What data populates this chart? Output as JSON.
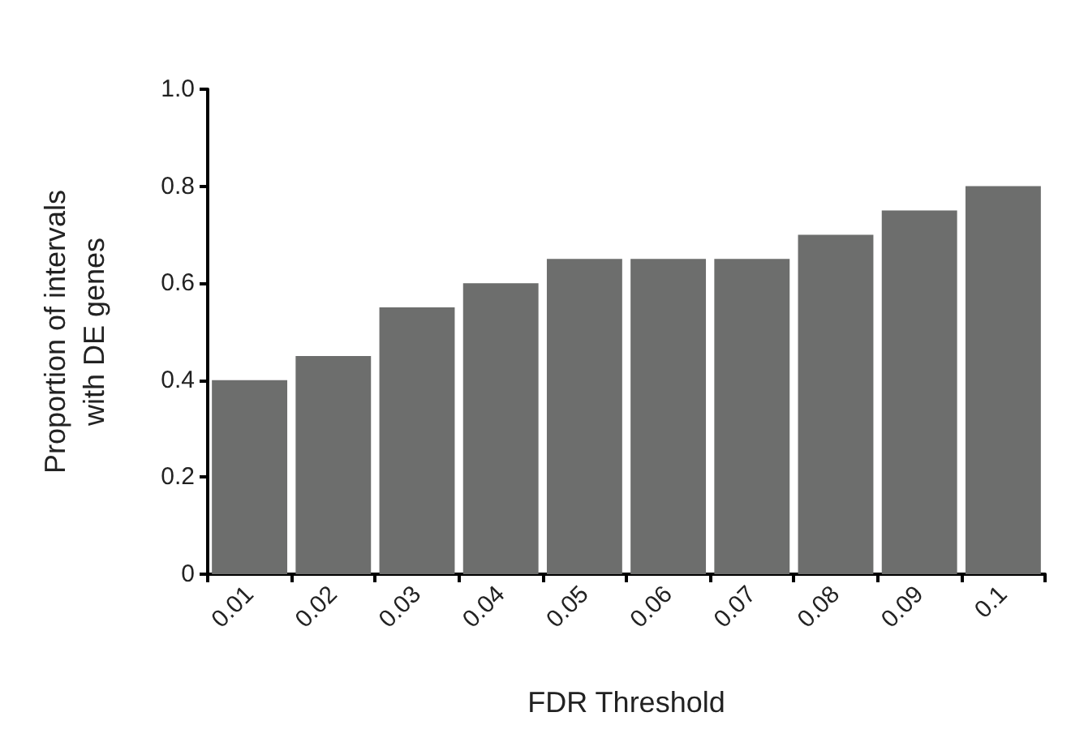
{
  "chart_data": {
    "type": "bar",
    "xlabel": "FDR Threshold",
    "ylabel": "Proportion of intervals\nwith DE genes",
    "categories": [
      "0.01",
      "0.02",
      "0.03",
      "0.04",
      "0.05",
      "0.06",
      "0.07",
      "0.08",
      "0.09",
      "0.1"
    ],
    "values": [
      0.4,
      0.45,
      0.55,
      0.6,
      0.65,
      0.65,
      0.65,
      0.7,
      0.75,
      0.8
    ],
    "color": "#6d6e6d",
    "ylim": [
      0,
      1
    ],
    "yticks": [
      0,
      {
        "value": 0.2,
        "label": "0.2"
      },
      {
        "value": 0.4,
        "label": "0.4"
      },
      {
        "value": 0.6,
        "label": "0.6"
      },
      {
        "value": 0.8,
        "label": "0.8"
      },
      {
        "value": 1,
        "label": "1.0"
      }
    ],
    "grid": false
  }
}
